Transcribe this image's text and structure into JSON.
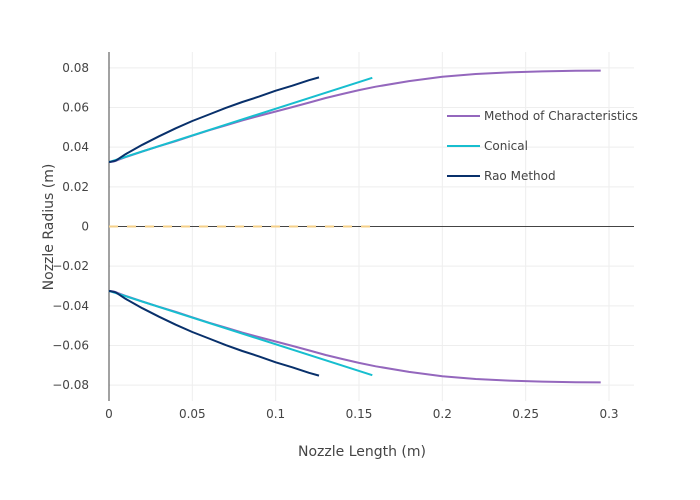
{
  "chart_data": {
    "type": "line",
    "title": "",
    "xlabel": "Nozzle Length (m)",
    "ylabel": "Nozzle Radius (m)",
    "xlim": [
      0,
      0.315
    ],
    "ylim": [
      -0.088,
      0.088
    ],
    "grid": true,
    "legend_position": "right",
    "x_ticks": [
      0,
      0.05,
      0.1,
      0.15,
      0.2,
      0.25,
      0.3
    ],
    "x_tick_labels": [
      "0",
      "0.05",
      "0.1",
      "0.15",
      "0.2",
      "0.25",
      "0.3"
    ],
    "y_ticks": [
      -0.08,
      -0.06,
      -0.04,
      -0.02,
      0,
      0.02,
      0.04,
      0.06,
      0.08
    ],
    "y_tick_labels": [
      "−0.08",
      "−0.06",
      "−0.04",
      "−0.02",
      "0",
      "0.02",
      "0.04",
      "0.06",
      "0.08"
    ],
    "series": [
      {
        "name": "Method of Characteristics",
        "color": "#9467bd",
        "x": [
          0,
          0.003,
          0.01,
          0.02,
          0.03,
          0.04,
          0.05,
          0.06,
          0.07,
          0.08,
          0.09,
          0.1,
          0.11,
          0.12,
          0.13,
          0.14,
          0.15,
          0.16,
          0.18,
          0.2,
          0.22,
          0.24,
          0.26,
          0.28,
          0.295
        ],
        "y": [
          0.0325,
          0.0328,
          0.035,
          0.0378,
          0.0405,
          0.043,
          0.0458,
          0.0485,
          0.051,
          0.0535,
          0.0558,
          0.058,
          0.0602,
          0.0625,
          0.0648,
          0.0668,
          0.0688,
          0.0705,
          0.0733,
          0.0755,
          0.0769,
          0.0777,
          0.0782,
          0.0785,
          0.0786
        ]
      },
      {
        "name": "Conical",
        "color": "#17becf",
        "x": [
          0,
          0.158
        ],
        "y": [
          0.0325,
          0.075
        ]
      },
      {
        "name": "Rao Method",
        "color": "#08306b",
        "x": [
          0,
          0.004,
          0.01,
          0.02,
          0.03,
          0.04,
          0.05,
          0.06,
          0.07,
          0.08,
          0.09,
          0.1,
          0.11,
          0.12,
          0.126
        ],
        "y": [
          0.0325,
          0.0332,
          0.0365,
          0.0412,
          0.0455,
          0.0495,
          0.0532,
          0.0565,
          0.0598,
          0.0628,
          0.0655,
          0.0685,
          0.071,
          0.0738,
          0.0752
        ]
      }
    ],
    "reference_line": {
      "color": "#f5d08a",
      "x": [
        0,
        0.158
      ],
      "y": [
        0,
        0
      ]
    }
  }
}
